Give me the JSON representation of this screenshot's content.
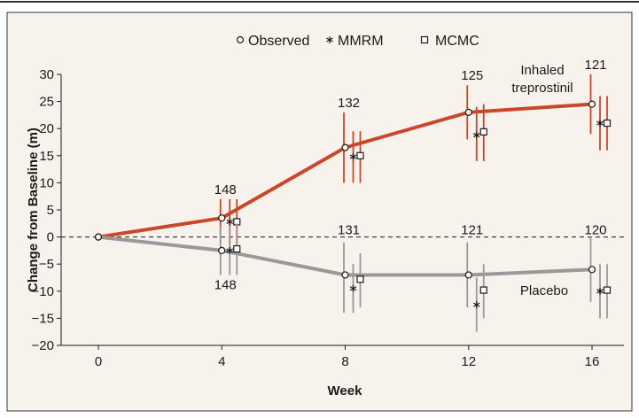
{
  "chart_data": {
    "type": "line",
    "xlabel": "Week",
    "ylabel": "Change from Baseline (m)",
    "ylim": [
      -20,
      30
    ],
    "xlim": [
      0,
      16
    ],
    "x_ticks": [
      0,
      4,
      8,
      12,
      16
    ],
    "y_ticks": [
      -20,
      -15,
      -10,
      -5,
      0,
      5,
      10,
      15,
      20,
      25,
      30
    ],
    "grid": false,
    "reference_line": {
      "y": 0,
      "style": "dashed"
    },
    "legend": {
      "position": "top-center",
      "entries": [
        {
          "marker": "circle",
          "label": "Observed"
        },
        {
          "marker": "asterisk",
          "label": "MMRM"
        },
        {
          "marker": "square",
          "label": "MCMC"
        }
      ]
    },
    "series": [
      {
        "name": "Inhaled treprostinil",
        "label_lines": [
          "Inhaled",
          "treprostinil"
        ],
        "color": "#c9472b",
        "observed": {
          "x": [
            0,
            4,
            8,
            12,
            16
          ],
          "y": [
            0,
            3.5,
            16.5,
            23,
            24.5
          ],
          "ci": [
            null,
            [
              -1,
              7
            ],
            [
              10,
              23
            ],
            [
              18,
              28
            ],
            [
              19,
              30
            ]
          ]
        },
        "mmrm": {
          "x": [
            4,
            8,
            12,
            16
          ],
          "y": [
            2.8,
            14.8,
            18.8,
            21
          ],
          "ci": [
            [
              -2,
              7
            ],
            [
              10,
              19.5
            ],
            [
              14,
              24
            ],
            [
              16,
              26
            ]
          ]
        },
        "mcmc": {
          "x": [
            4,
            8,
            12,
            16
          ],
          "y": [
            2.8,
            15,
            19.4,
            21
          ],
          "ci": [
            [
              -2,
              7
            ],
            [
              10,
              19.5
            ],
            [
              14,
              24.5
            ],
            [
              16,
              26
            ]
          ]
        },
        "n": [
          {
            "week": 4,
            "text": "148"
          },
          {
            "week": 8,
            "text": "132"
          },
          {
            "week": 12,
            "text": "125"
          },
          {
            "week": 16,
            "text": "121"
          }
        ]
      },
      {
        "name": "Placebo",
        "label_lines": [
          "Placebo"
        ],
        "color": "#999999",
        "observed": {
          "x": [
            0,
            4,
            8,
            12,
            16
          ],
          "y": [
            0,
            -2.5,
            -7,
            -7,
            -6
          ],
          "ci": [
            null,
            [
              -7,
              2
            ],
            [
              -14,
              -1
            ],
            [
              -13,
              -1
            ],
            [
              -12,
              0
            ]
          ]
        },
        "mmrm": {
          "x": [
            4,
            8,
            12,
            16
          ],
          "y": [
            -2.5,
            -9.5,
            -12.5,
            -10
          ],
          "ci": [
            [
              -7,
              2
            ],
            [
              -14,
              -5
            ],
            [
              -17.5,
              -7.5
            ],
            [
              -15,
              -5
            ]
          ]
        },
        "mcmc": {
          "x": [
            4,
            8,
            12,
            16
          ],
          "y": [
            -2.2,
            -7.8,
            -9.8,
            -9.8
          ],
          "ci": [
            [
              -7,
              2.5
            ],
            [
              -13,
              -3
            ],
            [
              -15,
              -5
            ],
            [
              -15,
              -5
            ]
          ]
        },
        "n": [
          {
            "week": 4,
            "text": "148"
          },
          {
            "week": 8,
            "text": "131"
          },
          {
            "week": 12,
            "text": "121"
          },
          {
            "week": 16,
            "text": "120"
          }
        ]
      }
    ]
  }
}
